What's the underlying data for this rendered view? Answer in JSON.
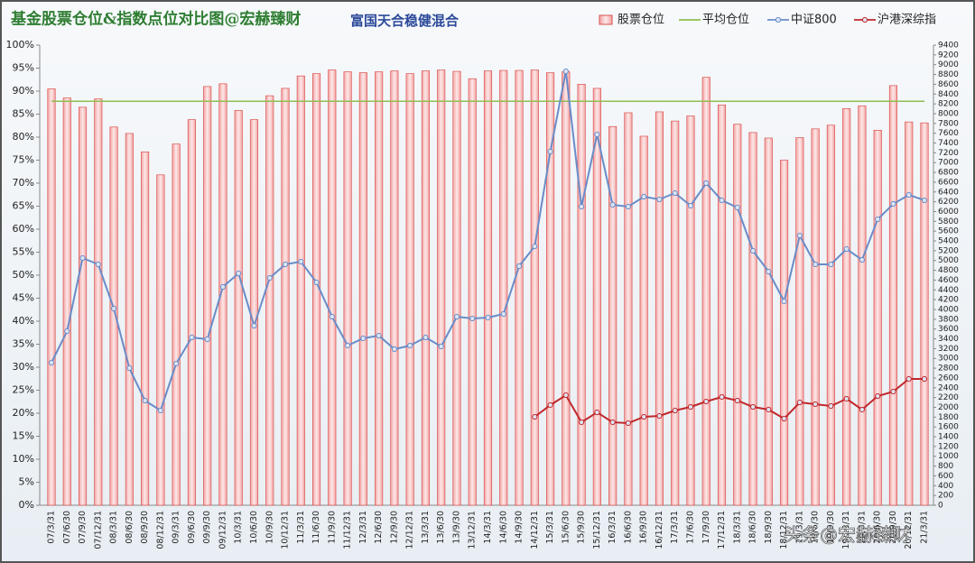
{
  "chart_data": {
    "type": "bar-line",
    "title": "基金股票仓位&指数点位对比图@宏赫臻财",
    "subtitle": "富国天合稳健混合",
    "annotation": "头条@宏赫臻财",
    "categories": [
      "07/3/31",
      "07/6/30",
      "07/9/30",
      "07/12/31",
      "08/3/31",
      "08/6/30",
      "08/9/30",
      "08/12/31",
      "09/3/31",
      "09/6/30",
      "09/9/30",
      "09/12/31",
      "10/3/31",
      "10/6/30",
      "10/9/30",
      "10/12/31",
      "11/3/31",
      "11/6/30",
      "11/9/30",
      "11/12/31",
      "12/3/31",
      "12/6/30",
      "12/9/30",
      "12/12/31",
      "13/3/31",
      "13/6/30",
      "13/9/30",
      "13/12/31",
      "14/3/31",
      "14/6/30",
      "14/9/30",
      "14/12/31",
      "15/3/31",
      "15/6/30",
      "15/9/30",
      "15/12/31",
      "16/3/31",
      "16/6/30",
      "16/9/30",
      "16/12/31",
      "17/3/31",
      "17/6/30",
      "17/9/30",
      "17/12/31",
      "18/3/31",
      "18/6/30",
      "18/9/30",
      "18/12/31",
      "19/3/31",
      "19/6/30",
      "19/9/30",
      "19/12/31",
      "20/3/31",
      "20/6/30",
      "20/9/30",
      "20/12/31",
      "21/3/31"
    ],
    "series": [
      {
        "name": "股票仓位",
        "kind": "bar",
        "color": "#f4a0a0",
        "values": [
          90.5,
          88.5,
          86.5,
          88.3,
          82.2,
          80.8,
          76.8,
          71.8,
          78.5,
          83.8,
          91,
          91.6,
          85.8,
          83.8,
          89,
          90.6,
          93.3,
          93.8,
          94.6,
          94.2,
          94,
          94.2,
          94.4,
          93.8,
          94.4,
          94.6,
          94.3,
          92.7,
          94.4,
          94.5,
          94.5,
          94.6,
          94,
          94.2,
          91.5,
          90.6,
          82.3,
          85.3,
          80.2,
          85.5,
          83.5,
          84.6,
          93,
          87,
          82.8,
          81,
          79.8,
          75,
          79.9,
          81.8,
          82.6,
          86.2,
          86.8,
          81.5,
          91.2,
          83.3,
          83.1
        ]
      },
      {
        "name": "平均仓位",
        "kind": "line",
        "color": "#8fbf4f",
        "values": [
          87.8,
          87.8,
          87.8,
          87.8,
          87.8,
          87.8,
          87.8,
          87.8,
          87.8,
          87.8,
          87.8,
          87.8,
          87.8,
          87.8,
          87.8,
          87.8,
          87.8,
          87.8,
          87.8,
          87.8,
          87.8,
          87.8,
          87.8,
          87.8,
          87.8,
          87.8,
          87.8,
          87.8,
          87.8,
          87.8,
          87.8,
          87.8,
          87.8,
          87.8,
          87.8,
          87.8,
          87.8,
          87.8,
          87.8,
          87.8,
          87.8,
          87.8,
          87.8,
          87.8,
          87.8,
          87.8,
          87.8,
          87.8,
          87.8,
          87.8,
          87.8,
          87.8,
          87.8,
          87.8,
          87.8,
          87.8,
          87.8
        ]
      },
      {
        "name": "中证800",
        "kind": "line",
        "axis": "y2",
        "markers": true,
        "color": "#6a8cc8",
        "values": [
          2912,
          3557,
          5050,
          4921,
          4018,
          2801,
          2138,
          1935,
          2893,
          3428,
          3391,
          4460,
          4737,
          3667,
          4644,
          4921,
          4976,
          4552,
          3852,
          3262,
          3410,
          3465,
          3188,
          3262,
          3428,
          3244,
          3852,
          3815,
          3834,
          3907,
          4884,
          5289,
          7225,
          8865,
          6100,
          7575,
          6137,
          6100,
          6303,
          6248,
          6377,
          6119,
          6580,
          6229,
          6082,
          5197,
          4773,
          4165,
          5510,
          4921,
          4921,
          5234,
          5013,
          5842,
          6156,
          6340,
          6229
        ]
      },
      {
        "name": "沪港深综指",
        "kind": "line",
        "axis": "y2",
        "markers": true,
        "color": "#c0282c",
        "values": [
          null,
          null,
          null,
          null,
          null,
          null,
          null,
          null,
          null,
          null,
          null,
          null,
          null,
          null,
          null,
          null,
          null,
          null,
          null,
          null,
          null,
          null,
          null,
          null,
          null,
          null,
          null,
          null,
          null,
          null,
          null,
          1806,
          2046,
          2248,
          1696,
          1898,
          1696,
          1677,
          1806,
          1824,
          1935,
          2009,
          2119,
          2212,
          2138,
          2009,
          1954,
          1769,
          2101,
          2064,
          2027,
          2175,
          1954,
          2230,
          2322,
          2580,
          2580
        ]
      }
    ],
    "ylim": [
      0,
      100
    ],
    "yticks": [
      {
        "value": 0,
        "label": "0%"
      },
      {
        "value": 5,
        "label": "5%"
      },
      {
        "value": 10,
        "label": "10%"
      },
      {
        "value": 15,
        "label": "15%"
      },
      {
        "value": 20,
        "label": "20%"
      },
      {
        "value": 25,
        "label": "25%"
      },
      {
        "value": 30,
        "label": "30%"
      },
      {
        "value": 35,
        "label": "35%"
      },
      {
        "value": 40,
        "label": "40%"
      },
      {
        "value": 45,
        "label": "45%"
      },
      {
        "value": 50,
        "label": "50%"
      },
      {
        "value": 55,
        "label": "55%"
      },
      {
        "value": 60,
        "label": "60%"
      },
      {
        "value": 65,
        "label": "65%"
      },
      {
        "value": 70,
        "label": "70%"
      },
      {
        "value": 75,
        "label": "75%"
      },
      {
        "value": 80,
        "label": "80%"
      },
      {
        "value": 85,
        "label": "85%"
      },
      {
        "value": 90,
        "label": "90%"
      },
      {
        "value": 95,
        "label": "95%"
      },
      {
        "value": 100,
        "label": "100%"
      }
    ],
    "y2lim": [
      0,
      9400
    ],
    "y2ticks": [
      0,
      200,
      400,
      600,
      800,
      1000,
      1200,
      1400,
      1600,
      1800,
      2000,
      2200,
      2400,
      2600,
      2800,
      3000,
      3200,
      3400,
      3600,
      3800,
      4000,
      4200,
      4400,
      4600,
      4800,
      5000,
      5200,
      5400,
      5600,
      5800,
      6000,
      6200,
      6400,
      6600,
      6800,
      7000,
      7200,
      7400,
      7600,
      7800,
      8000,
      8200,
      8400,
      8600,
      8800,
      9000,
      9200,
      9400
    ],
    "legend": "top-right"
  }
}
